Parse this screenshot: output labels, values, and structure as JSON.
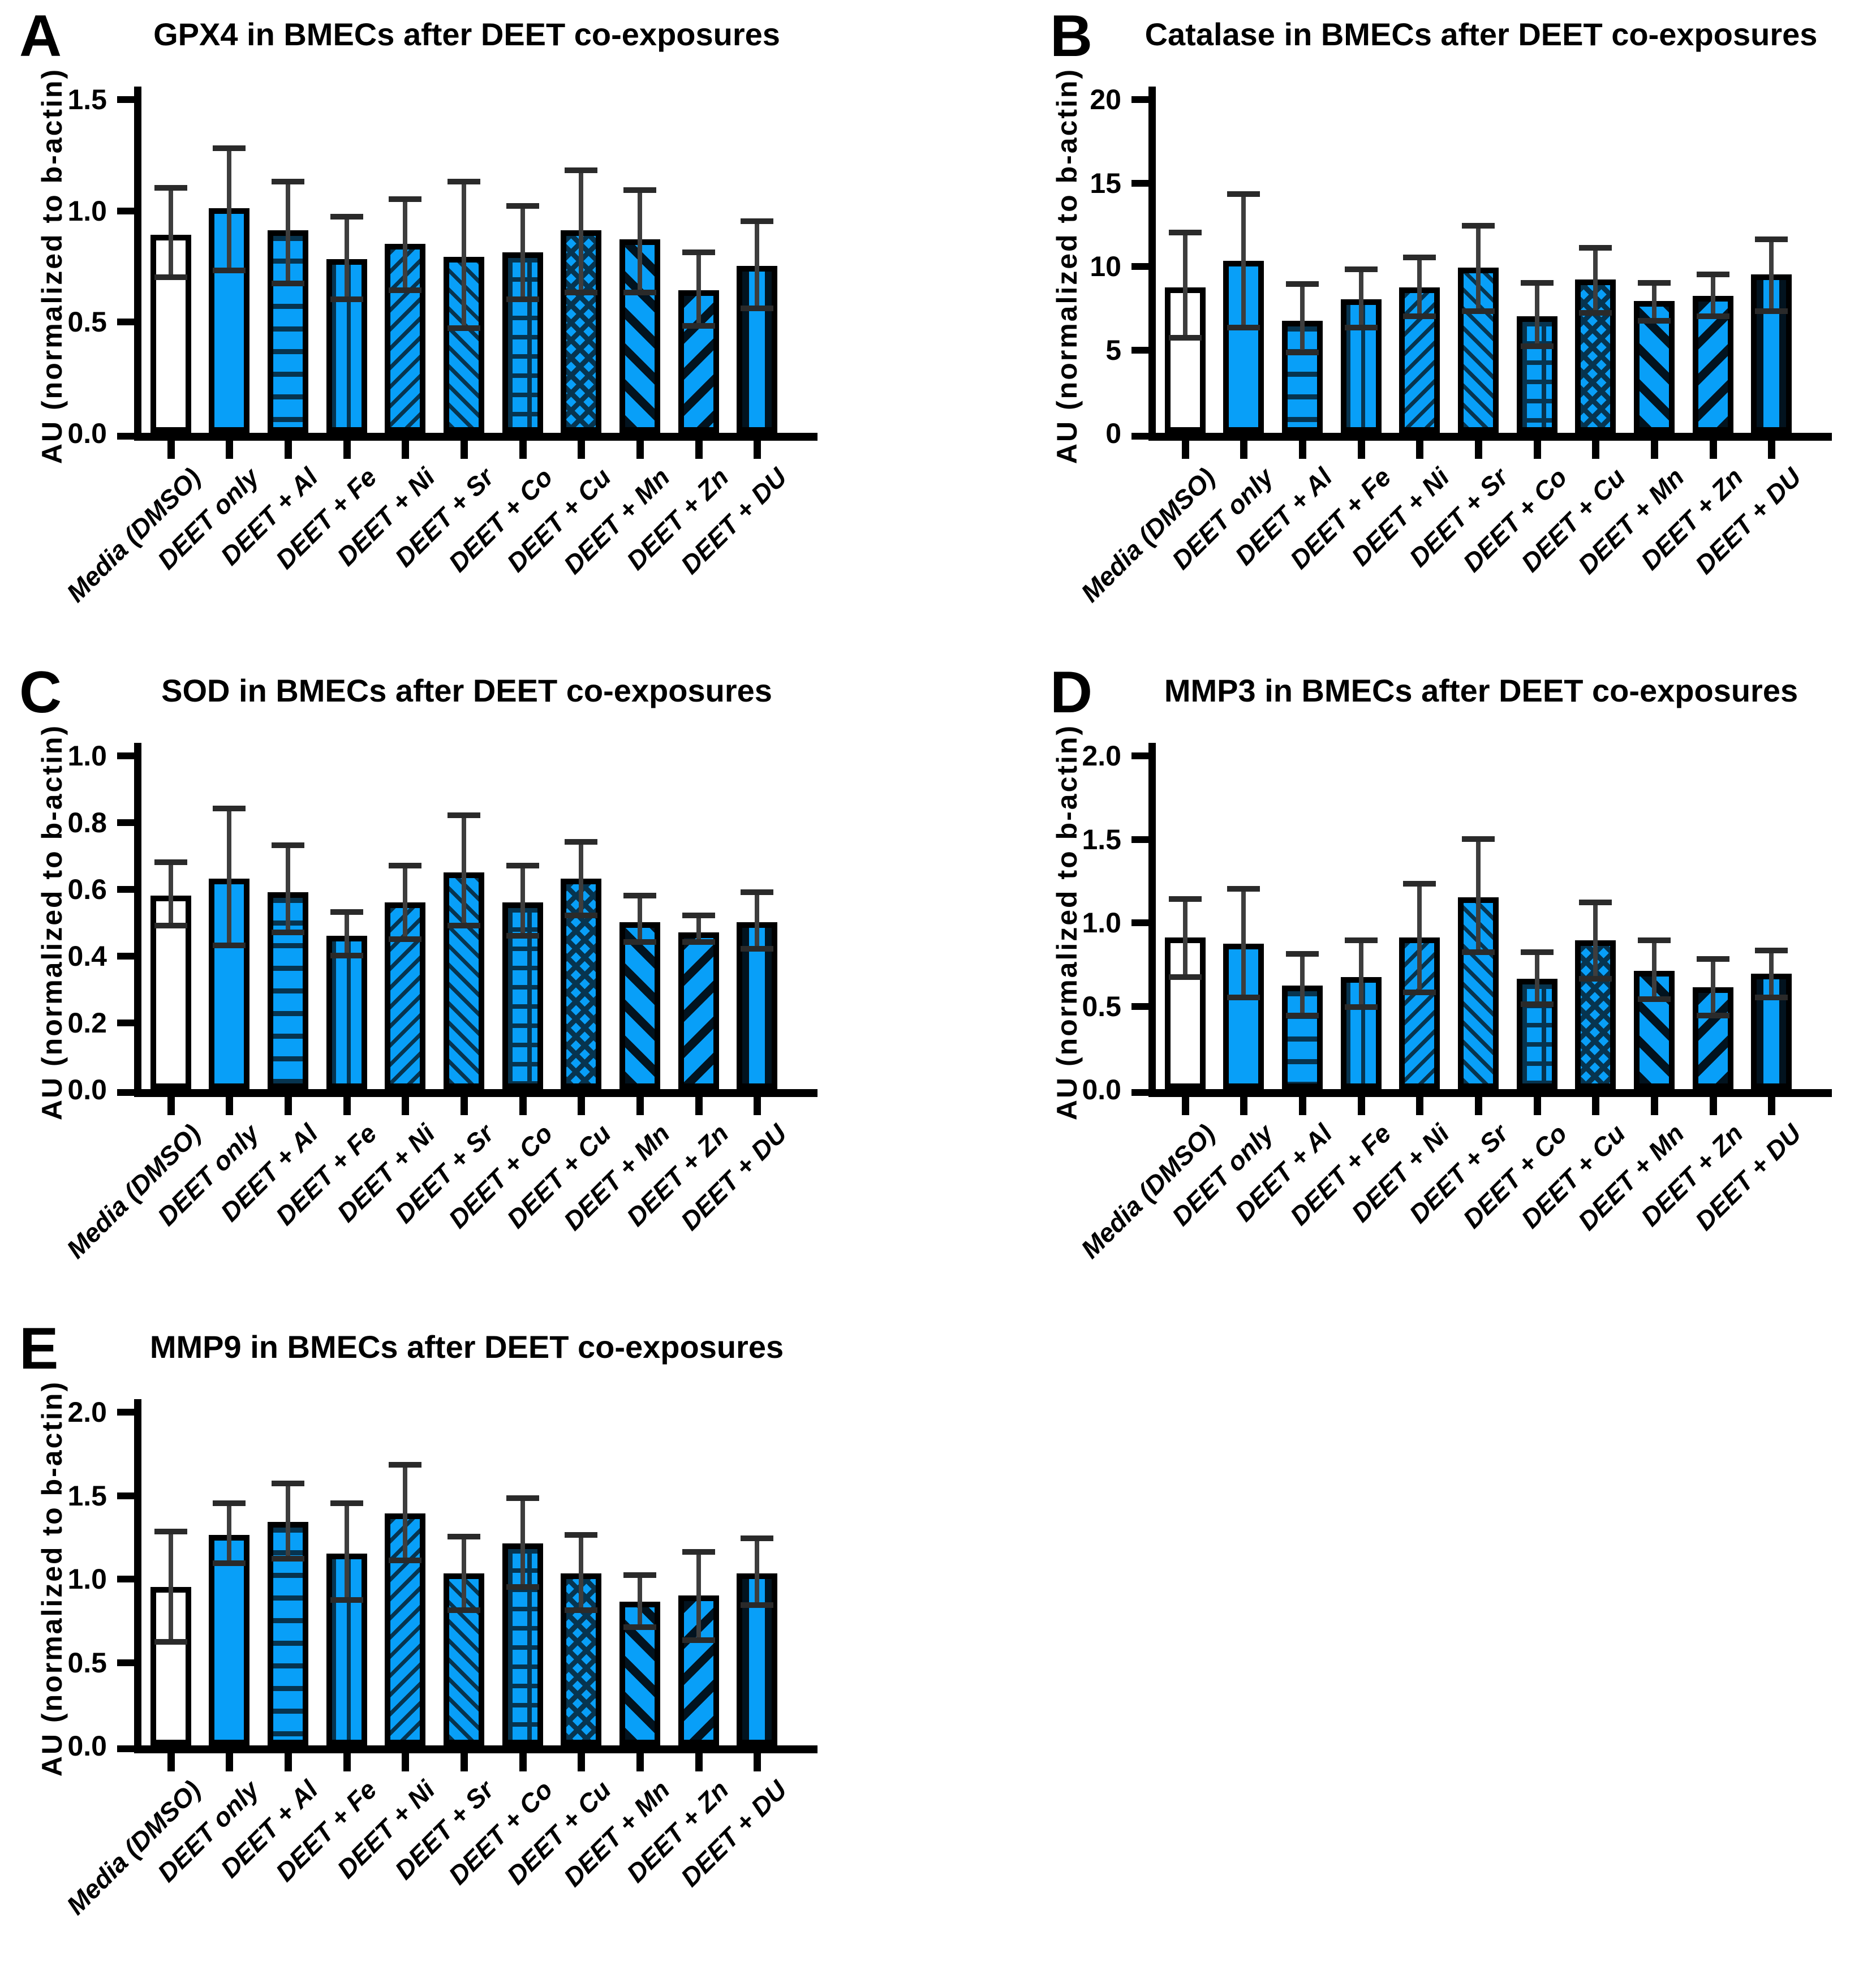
{
  "figure": {
    "y_axis_label": "AU (normalized to b-actin)",
    "categories": [
      "Media (DMSO)",
      "DEET only",
      "DEET + Al",
      "DEET + Fe",
      "DEET + Ni",
      "DEET + Sr",
      "DEET + Co",
      "DEET + Cu",
      "DEET + Mn",
      "DEET + Zn",
      "DEET + DU"
    ],
    "bar_patterns": [
      "white",
      "solid",
      "hlines",
      "vlines",
      "diag-fwd",
      "diag-back",
      "grid",
      "checker",
      "stripe-back",
      "stripe-fwd",
      "vstripe"
    ],
    "colors": {
      "bar_blue": "#089ff8",
      "pattern_dark_navy": "#07344f",
      "pattern_black_stripe": "#02131f",
      "axis": "#000000",
      "error_bar": "#3d3d3d",
      "background": "#ffffff"
    },
    "legend": "none",
    "grid_lines": "off",
    "error_bar_style": "SD, both directions, with caps"
  },
  "chart_data": [
    {
      "type": "bar",
      "panel_letter": "A",
      "title": "GPX4 in BMECs after DEET co-exposures",
      "xlabel": "",
      "ylabel": "AU (normalized to b-actin)",
      "ylim": [
        0,
        1.5
      ],
      "ytick_vals": [
        0,
        0.5,
        1.0,
        1.5
      ],
      "ytick_labels": [
        "0.0",
        "0.5",
        "1.0",
        "1.5"
      ],
      "categories": [
        "Media (DMSO)",
        "DEET only",
        "DEET + Al",
        "DEET + Fe",
        "DEET + Ni",
        "DEET + Sr",
        "DEET + Co",
        "DEET + Cu",
        "DEET + Mn",
        "DEET + Zn",
        "DEET + DU"
      ],
      "values": [
        0.89,
        1.01,
        0.91,
        0.78,
        0.85,
        0.79,
        0.81,
        0.91,
        0.87,
        0.64,
        0.75
      ],
      "err_low": [
        0.7,
        0.73,
        0.67,
        0.6,
        0.64,
        0.47,
        0.6,
        0.63,
        0.63,
        0.48,
        0.56
      ],
      "err_high": [
        1.1,
        1.28,
        1.13,
        0.97,
        1.05,
        1.13,
        1.02,
        1.18,
        1.09,
        0.81,
        0.95
      ]
    },
    {
      "type": "bar",
      "panel_letter": "B",
      "title": "Catalase in BMECs after DEET co-exposures",
      "xlabel": "",
      "ylabel": "AU (normalized to b-actin)",
      "ylim": [
        0,
        20
      ],
      "ytick_vals": [
        0,
        5,
        10,
        15,
        20
      ],
      "ytick_labels": [
        "0",
        "5",
        "10",
        "15",
        "20"
      ],
      "categories": [
        "Media (DMSO)",
        "DEET only",
        "DEET + Al",
        "DEET + Fe",
        "DEET + Ni",
        "DEET + Sr",
        "DEET + Co",
        "DEET + Cu",
        "DEET + Mn",
        "DEET + Zn",
        "DEET + DU"
      ],
      "values": [
        8.7,
        10.3,
        6.7,
        8.0,
        8.7,
        9.9,
        7.0,
        9.2,
        7.9,
        8.2,
        9.5
      ],
      "err_low": [
        5.7,
        6.3,
        4.8,
        6.3,
        7.0,
        7.3,
        5.2,
        7.2,
        6.7,
        7.0,
        7.3
      ],
      "err_high": [
        12.0,
        14.3,
        8.9,
        9.8,
        10.5,
        12.4,
        9.0,
        11.1,
        9.0,
        9.5,
        11.6
      ]
    },
    {
      "type": "bar",
      "panel_letter": "C",
      "title": "SOD in BMECs after DEET co-exposures",
      "xlabel": "",
      "ylabel": "AU (normalized to b-actin)",
      "ylim": [
        0,
        1.0
      ],
      "ytick_vals": [
        0,
        0.2,
        0.4,
        0.6,
        0.8,
        1.0
      ],
      "ytick_labels": [
        "0.0",
        "0.2",
        "0.4",
        "0.6",
        "0.8",
        "1.0"
      ],
      "categories": [
        "Media (DMSO)",
        "DEET only",
        "DEET + Al",
        "DEET + Fe",
        "DEET + Ni",
        "DEET + Sr",
        "DEET + Co",
        "DEET + Cu",
        "DEET + Mn",
        "DEET + Zn",
        "DEET + DU"
      ],
      "values": [
        0.58,
        0.63,
        0.59,
        0.46,
        0.56,
        0.65,
        0.56,
        0.63,
        0.5,
        0.47,
        0.5
      ],
      "err_low": [
        0.49,
        0.43,
        0.47,
        0.4,
        0.45,
        0.49,
        0.46,
        0.52,
        0.44,
        0.44,
        0.42
      ],
      "err_high": [
        0.68,
        0.84,
        0.73,
        0.53,
        0.67,
        0.82,
        0.67,
        0.74,
        0.58,
        0.52,
        0.59
      ]
    },
    {
      "type": "bar",
      "panel_letter": "D",
      "title": "MMP3 in BMECs after DEET co-exposures",
      "xlabel": "",
      "ylabel": "AU (normalized to b-actin)",
      "ylim": [
        0,
        2.0
      ],
      "ytick_vals": [
        0,
        0.5,
        1.0,
        1.5,
        2.0
      ],
      "ytick_labels": [
        "0.0",
        "0.5",
        "1.0",
        "1.5",
        "2.0"
      ],
      "categories": [
        "Media (DMSO)",
        "DEET only",
        "DEET + Al",
        "DEET + Fe",
        "DEET + Ni",
        "DEET + Sr",
        "DEET + Co",
        "DEET + Cu",
        "DEET + Mn",
        "DEET + Zn",
        "DEET + DU"
      ],
      "values": [
        0.91,
        0.87,
        0.62,
        0.67,
        0.91,
        1.15,
        0.66,
        0.89,
        0.71,
        0.61,
        0.69
      ],
      "err_low": [
        0.67,
        0.55,
        0.44,
        0.49,
        0.58,
        0.82,
        0.51,
        0.66,
        0.54,
        0.44,
        0.55
      ],
      "err_high": [
        1.14,
        1.2,
        0.81,
        0.89,
        1.23,
        1.5,
        0.82,
        1.12,
        0.89,
        0.78,
        0.83
      ]
    },
    {
      "type": "bar",
      "panel_letter": "E",
      "title": "MMP9 in BMECs after DEET co-exposures",
      "xlabel": "",
      "ylabel": "AU (normalized to b-actin)",
      "ylim": [
        0,
        2.0
      ],
      "ytick_vals": [
        0,
        0.5,
        1.0,
        1.5,
        2.0
      ],
      "ytick_labels": [
        "0.0",
        "0.5",
        "1.0",
        "1.5",
        "2.0"
      ],
      "categories": [
        "Media (DMSO)",
        "DEET only",
        "DEET + Al",
        "DEET + Fe",
        "DEET + Ni",
        "DEET + Sr",
        "DEET + Co",
        "DEET + Cu",
        "DEET + Mn",
        "DEET + Zn",
        "DEET + DU"
      ],
      "values": [
        0.95,
        1.26,
        1.34,
        1.15,
        1.39,
        1.03,
        1.21,
        1.03,
        0.86,
        0.9,
        1.03
      ],
      "err_low": [
        0.62,
        1.09,
        1.12,
        0.87,
        1.11,
        0.81,
        0.95,
        0.81,
        0.71,
        0.63,
        0.84
      ],
      "err_high": [
        1.28,
        1.45,
        1.57,
        1.45,
        1.68,
        1.25,
        1.48,
        1.26,
        1.02,
        1.16,
        1.24
      ]
    }
  ]
}
